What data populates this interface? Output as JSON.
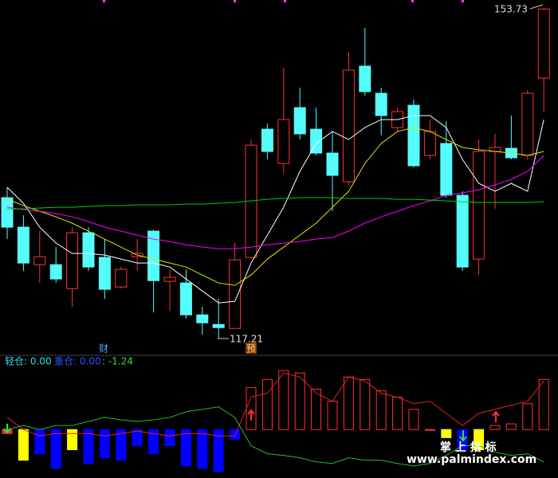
{
  "chart_data": [
    {
      "type": "candlestick",
      "ylim": [
        115.9,
        154.6
      ],
      "up_color": "#ff3232",
      "down_color": "#54fcfc",
      "open": [
        132.78,
        129.52,
        125.38,
        125.38,
        122.74,
        128.9,
        126.18,
        122.92,
        126.26,
        129.08,
        123.54,
        123.36,
        119.84,
        118.78,
        118.34,
        126.18,
        140.34,
        136.56,
        142.72,
        140.34,
        137.7,
        134.54,
        147.3,
        144.3,
        140.52,
        142.98,
        137.44,
        138.76,
        133.04,
        126.0,
        137.88,
        138.23,
        137.44,
        145.98
      ],
      "high": [
        133.92,
        130.84,
        129.08,
        127.32,
        129.52,
        129.52,
        128.2,
        125.12,
        128.2,
        129.26,
        124.86,
        124.86,
        120.72,
        121.6,
        127.76,
        139.2,
        140.96,
        147.12,
        144.92,
        142.72,
        140.08,
        148.88,
        151.52,
        144.92,
        142.72,
        143.6,
        141.4,
        141.22,
        133.48,
        139.2,
        139.82,
        141.84,
        144.66,
        153.73
      ],
      "low": [
        128.2,
        124.68,
        123.36,
        123.36,
        120.72,
        124.68,
        121.6,
        122.74,
        124.68,
        120.1,
        120.28,
        119.4,
        117.64,
        117.21,
        118.34,
        126.0,
        137.0,
        135.42,
        139.2,
        137.44,
        131.28,
        134.18,
        144.04,
        139.64,
        140.08,
        136.12,
        137.0,
        132.78,
        124.68,
        124.24,
        131.54,
        137.0,
        137.0,
        142.28
      ],
      "close": [
        129.52,
        125.56,
        126.26,
        123.8,
        128.9,
        125.12,
        122.66,
        124.86,
        126.62,
        123.62,
        123.98,
        119.84,
        118.96,
        118.43,
        125.91,
        138.58,
        137.88,
        141.4,
        139.82,
        137.7,
        135.24,
        146.86,
        144.48,
        141.84,
        142.28,
        136.3,
        140.08,
        133.04,
        125.12,
        137.88,
        138.32,
        137.18,
        144.3,
        153.6
      ],
      "series": [
        {
          "color": "#ffffff",
          "values": [
            133.92,
            132.16,
            129.52,
            127.76,
            126.62,
            126.62,
            126.44,
            126.0,
            125.56,
            125.56,
            125.12,
            123.8,
            122.48,
            121.16,
            121.34,
            125.56,
            128.64,
            131.72,
            135.68,
            138.76,
            140.08,
            139.2,
            140.52,
            141.4,
            141.4,
            141.84,
            141.84,
            140.52,
            137.0,
            134.36,
            133.48,
            134.36,
            133.48,
            141.4
          ]
        },
        {
          "color": "#e6e600",
          "values": [
            132.6,
            131.9,
            131.28,
            130.66,
            129.96,
            129.08,
            128.2,
            127.32,
            126.44,
            126.0,
            125.56,
            125.12,
            124.24,
            123.36,
            123.1,
            124.24,
            126.0,
            127.32,
            128.64,
            129.96,
            131.72,
            133.48,
            136.56,
            138.76,
            140.08,
            140.52,
            140.08,
            139.2,
            138.32,
            138.06,
            137.88,
            137.7,
            137.44,
            137.88
          ]
        },
        {
          "color": "#ff00ff",
          "values": [
            131.72,
            131.46,
            131.28,
            131.02,
            130.66,
            130.14,
            129.52,
            129.08,
            128.64,
            128.2,
            127.94,
            127.58,
            127.32,
            127.14,
            127.14,
            127.32,
            127.58,
            127.76,
            127.94,
            128.2,
            128.38,
            129.08,
            129.96,
            130.66,
            131.28,
            131.9,
            132.42,
            133.04,
            133.3,
            133.66,
            134.18,
            134.8,
            135.68,
            137.44
          ]
        },
        {
          "color": "#00d000",
          "values": [
            131.54,
            131.54,
            131.63,
            131.72,
            131.72,
            131.81,
            131.9,
            131.9,
            131.98,
            131.98,
            131.98,
            132.07,
            132.07,
            132.16,
            132.25,
            132.42,
            132.6,
            132.69,
            132.78,
            132.78,
            132.78,
            132.69,
            132.69,
            132.69,
            132.6,
            132.6,
            132.51,
            132.42,
            132.34,
            132.25,
            132.25,
            132.25,
            132.25,
            132.34
          ]
        }
      ],
      "annotations": [
        "财",
        "预"
      ]
    },
    {
      "type": "bar",
      "ylim": [
        -58,
        80
      ],
      "header": [
        "轻仓: 0.00",
        "重仓: 0.00",
        ": -1.24"
      ],
      "values": [
        -5,
        -38,
        -30,
        -48,
        -25,
        -42,
        -35,
        -38,
        -20,
        -30,
        -20,
        -45,
        -48,
        -52,
        -12,
        52,
        62,
        73,
        70,
        50,
        35,
        65,
        62,
        48,
        40,
        25,
        0,
        -10,
        -25,
        -25,
        5,
        7,
        32,
        62
      ],
      "bar_colors": [
        "#ff3232",
        "#ffff00",
        "#0000ff",
        "#0000ff",
        "#ffff00",
        "#0000ff",
        "#0000ff",
        "#0000ff",
        "#0000ff",
        "#0000ff",
        "#0000ff",
        "#0000ff",
        "#0000ff",
        "#0000ff",
        "#0000ff",
        "#ff3232",
        "#ff3232",
        "#ff3232",
        "#ff3232",
        "#ff3232",
        "#ff3232",
        "#ff3232",
        "#ff3232",
        "#ff3232",
        "#ff3232",
        "#ff3232",
        "#ff3232",
        "#ffff00",
        "#0000ff",
        "#ffff00",
        "#ff3232",
        "#ff3232",
        "#ff3232",
        "#ff3232"
      ],
      "series": [
        {
          "color": "#e02020",
          "values": [
            15,
            0,
            -8,
            -5,
            -5,
            -5,
            -8,
            -5,
            -2,
            -5,
            -8,
            -5,
            -5,
            -8,
            -8,
            40,
            45,
            70,
            65,
            45,
            35,
            65,
            60,
            45,
            40,
            32,
            35,
            20,
            5,
            20,
            25,
            30,
            35,
            60
          ]
        },
        {
          "color": "#20c020",
          "values": [
            0,
            5,
            0,
            5,
            5,
            10,
            15,
            12,
            10,
            12,
            15,
            22,
            25,
            28,
            15,
            -20,
            -30,
            -32,
            -35,
            -40,
            -42,
            -35,
            -38,
            -38,
            -42,
            -45,
            -42,
            -32,
            -20,
            -20,
            -28,
            -32,
            -30,
            -40
          ]
        }
      ]
    }
  ],
  "watermark": [
    "掌 上 指 标",
    "www.palmindex.com"
  ]
}
